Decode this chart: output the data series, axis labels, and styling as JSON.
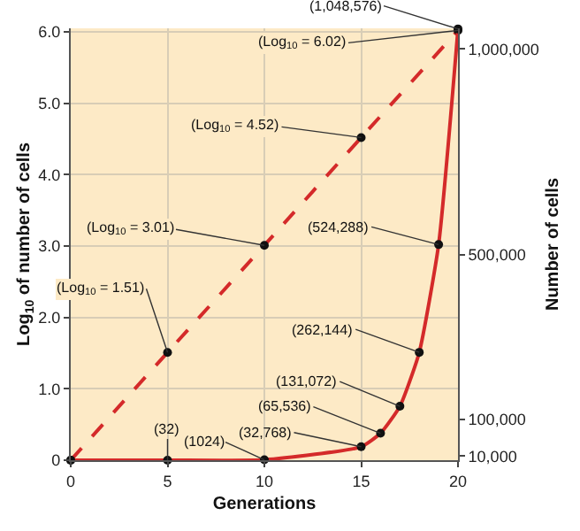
{
  "chart_data": {
    "type": "line",
    "xlabel": "Generations",
    "ylabel": "Log$_{10}$ of number of cells",
    "y2label": "Number of cells",
    "series": [
      {
        "color": "#d42a2a",
        "line_style": "dashed",
        "marker": "circle",
        "x": [
          0,
          5,
          10,
          15,
          20
        ],
        "values": [
          0,
          1.51,
          3.01,
          4.52,
          6.02
        ],
        "value_labels": [
          null,
          "(Log$_{10}$ = 1.51)",
          "(Log$_{10}$ = 3.01)",
          "(Log$_{10}$ = 4.52)",
          "(Log$_{10}$ = 6.02)"
        ]
      },
      {
        "color": "#d42a2a",
        "line_style": "solid",
        "marker": "circle",
        "axis": "y2",
        "x": [
          0,
          5,
          10,
          15,
          16,
          17,
          18,
          19,
          20
        ],
        "values": [
          0,
          32,
          1024,
          32768,
          65536,
          131072,
          262144,
          524288,
          1048576
        ],
        "value_labels": [
          null,
          "(32)",
          "(1024)",
          "(32,768)",
          "(65,536)",
          "(131,072)",
          "(262,144)",
          "(524,288)",
          "(1,048,576)"
        ]
      }
    ],
    "xlim": [
      0,
      20
    ],
    "xticks": [
      0,
      5,
      10,
      15,
      20
    ],
    "ylim": [
      0,
      6.05
    ],
    "yticks": [
      0,
      {
        "value": 1,
        "label": "1.0"
      },
      {
        "value": 2,
        "label": "2.0"
      },
      {
        "value": 3,
        "label": "3.0"
      },
      {
        "value": 4,
        "label": "4.0"
      },
      {
        "value": 5,
        "label": "5.0"
      },
      {
        "value": 6,
        "label": "6.0"
      }
    ],
    "y2lim": [
      0,
      1050000
    ],
    "y2ticks": [
      {
        "value": 10000,
        "label": "10,000"
      },
      {
        "value": 100000,
        "label": "100,000"
      },
      {
        "value": 500000,
        "label": "500,000"
      },
      {
        "value": 1000000,
        "label": "1,000,000"
      }
    ],
    "grid": true
  }
}
